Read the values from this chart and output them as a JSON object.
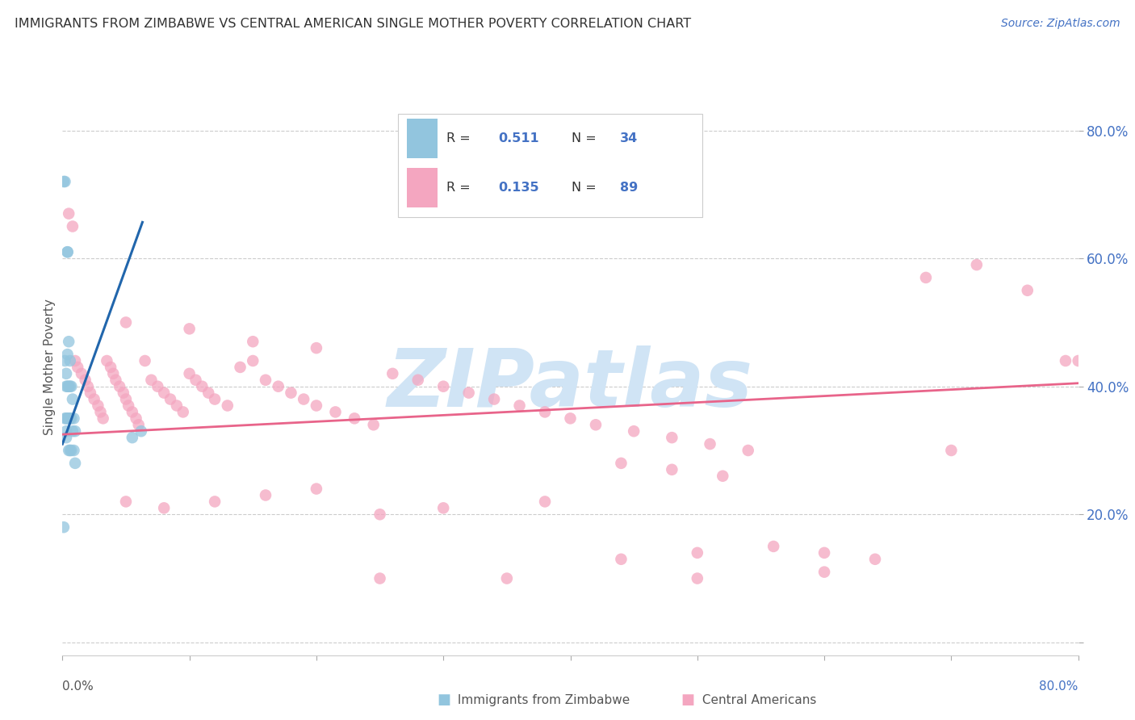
{
  "title": "IMMIGRANTS FROM ZIMBABWE VS CENTRAL AMERICAN SINGLE MOTHER POVERTY CORRELATION CHART",
  "source": "Source: ZipAtlas.com",
  "ylabel": "Single Mother Poverty",
  "xlim": [
    0.0,
    0.8
  ],
  "ylim": [
    -0.02,
    0.88
  ],
  "yticks": [
    0.0,
    0.2,
    0.4,
    0.6,
    0.8
  ],
  "ytick_labels": [
    "",
    "20.0%",
    "40.0%",
    "60.0%",
    "80.0%"
  ],
  "blue_color": "#92c5de",
  "pink_color": "#f4a6c0",
  "blue_line_color": "#2166ac",
  "pink_line_color": "#e8648a",
  "title_color": "#333333",
  "tick_color": "#4472c4",
  "watermark": "ZIPatlas",
  "watermark_color": "#d0e4f5",
  "blue_scatter_x": [
    0.001,
    0.002,
    0.002,
    0.002,
    0.003,
    0.003,
    0.003,
    0.003,
    0.003,
    0.004,
    0.004,
    0.004,
    0.004,
    0.004,
    0.005,
    0.005,
    0.005,
    0.005,
    0.006,
    0.006,
    0.006,
    0.006,
    0.007,
    0.007,
    0.007,
    0.008,
    0.008,
    0.009,
    0.009,
    0.01,
    0.01,
    0.055,
    0.062,
    0.001
  ],
  "blue_scatter_y": [
    0.72,
    0.72,
    0.44,
    0.35,
    0.42,
    0.4,
    0.35,
    0.33,
    0.32,
    0.61,
    0.61,
    0.45,
    0.4,
    0.35,
    0.47,
    0.4,
    0.35,
    0.3,
    0.44,
    0.4,
    0.35,
    0.3,
    0.4,
    0.35,
    0.3,
    0.38,
    0.33,
    0.35,
    0.3,
    0.33,
    0.28,
    0.32,
    0.33,
    0.18
  ],
  "pink_scatter_x": [
    0.005,
    0.008,
    0.01,
    0.012,
    0.015,
    0.018,
    0.02,
    0.022,
    0.025,
    0.028,
    0.03,
    0.032,
    0.035,
    0.038,
    0.04,
    0.042,
    0.045,
    0.048,
    0.05,
    0.052,
    0.055,
    0.058,
    0.06,
    0.065,
    0.07,
    0.075,
    0.08,
    0.085,
    0.09,
    0.095,
    0.1,
    0.105,
    0.11,
    0.115,
    0.12,
    0.13,
    0.14,
    0.15,
    0.16,
    0.17,
    0.18,
    0.19,
    0.2,
    0.215,
    0.23,
    0.245,
    0.26,
    0.28,
    0.3,
    0.32,
    0.34,
    0.36,
    0.38,
    0.4,
    0.42,
    0.45,
    0.48,
    0.51,
    0.54,
    0.44,
    0.48,
    0.52,
    0.56,
    0.6,
    0.64,
    0.68,
    0.72,
    0.76,
    0.8,
    0.05,
    0.08,
    0.12,
    0.16,
    0.2,
    0.25,
    0.3,
    0.38,
    0.44,
    0.5,
    0.05,
    0.1,
    0.15,
    0.2,
    0.25,
    0.35,
    0.5,
    0.6,
    0.7,
    0.79
  ],
  "pink_scatter_y": [
    0.67,
    0.65,
    0.44,
    0.43,
    0.42,
    0.41,
    0.4,
    0.39,
    0.38,
    0.37,
    0.36,
    0.35,
    0.44,
    0.43,
    0.42,
    0.41,
    0.4,
    0.39,
    0.38,
    0.37,
    0.36,
    0.35,
    0.34,
    0.44,
    0.41,
    0.4,
    0.39,
    0.38,
    0.37,
    0.36,
    0.42,
    0.41,
    0.4,
    0.39,
    0.38,
    0.37,
    0.43,
    0.44,
    0.41,
    0.4,
    0.39,
    0.38,
    0.37,
    0.36,
    0.35,
    0.34,
    0.42,
    0.41,
    0.4,
    0.39,
    0.38,
    0.37,
    0.36,
    0.35,
    0.34,
    0.33,
    0.32,
    0.31,
    0.3,
    0.28,
    0.27,
    0.26,
    0.15,
    0.14,
    0.13,
    0.57,
    0.59,
    0.55,
    0.44,
    0.22,
    0.21,
    0.22,
    0.23,
    0.24,
    0.2,
    0.21,
    0.22,
    0.13,
    0.14,
    0.5,
    0.49,
    0.47,
    0.46,
    0.1,
    0.1,
    0.1,
    0.11,
    0.3,
    0.44
  ],
  "blue_line_x": [
    0.0,
    0.063
  ],
  "blue_line_y_intercept": 0.31,
  "blue_line_slope": 5.5,
  "pink_line_x": [
    0.0,
    0.8
  ],
  "pink_line_y_start": 0.325,
  "pink_line_y_end": 0.405
}
